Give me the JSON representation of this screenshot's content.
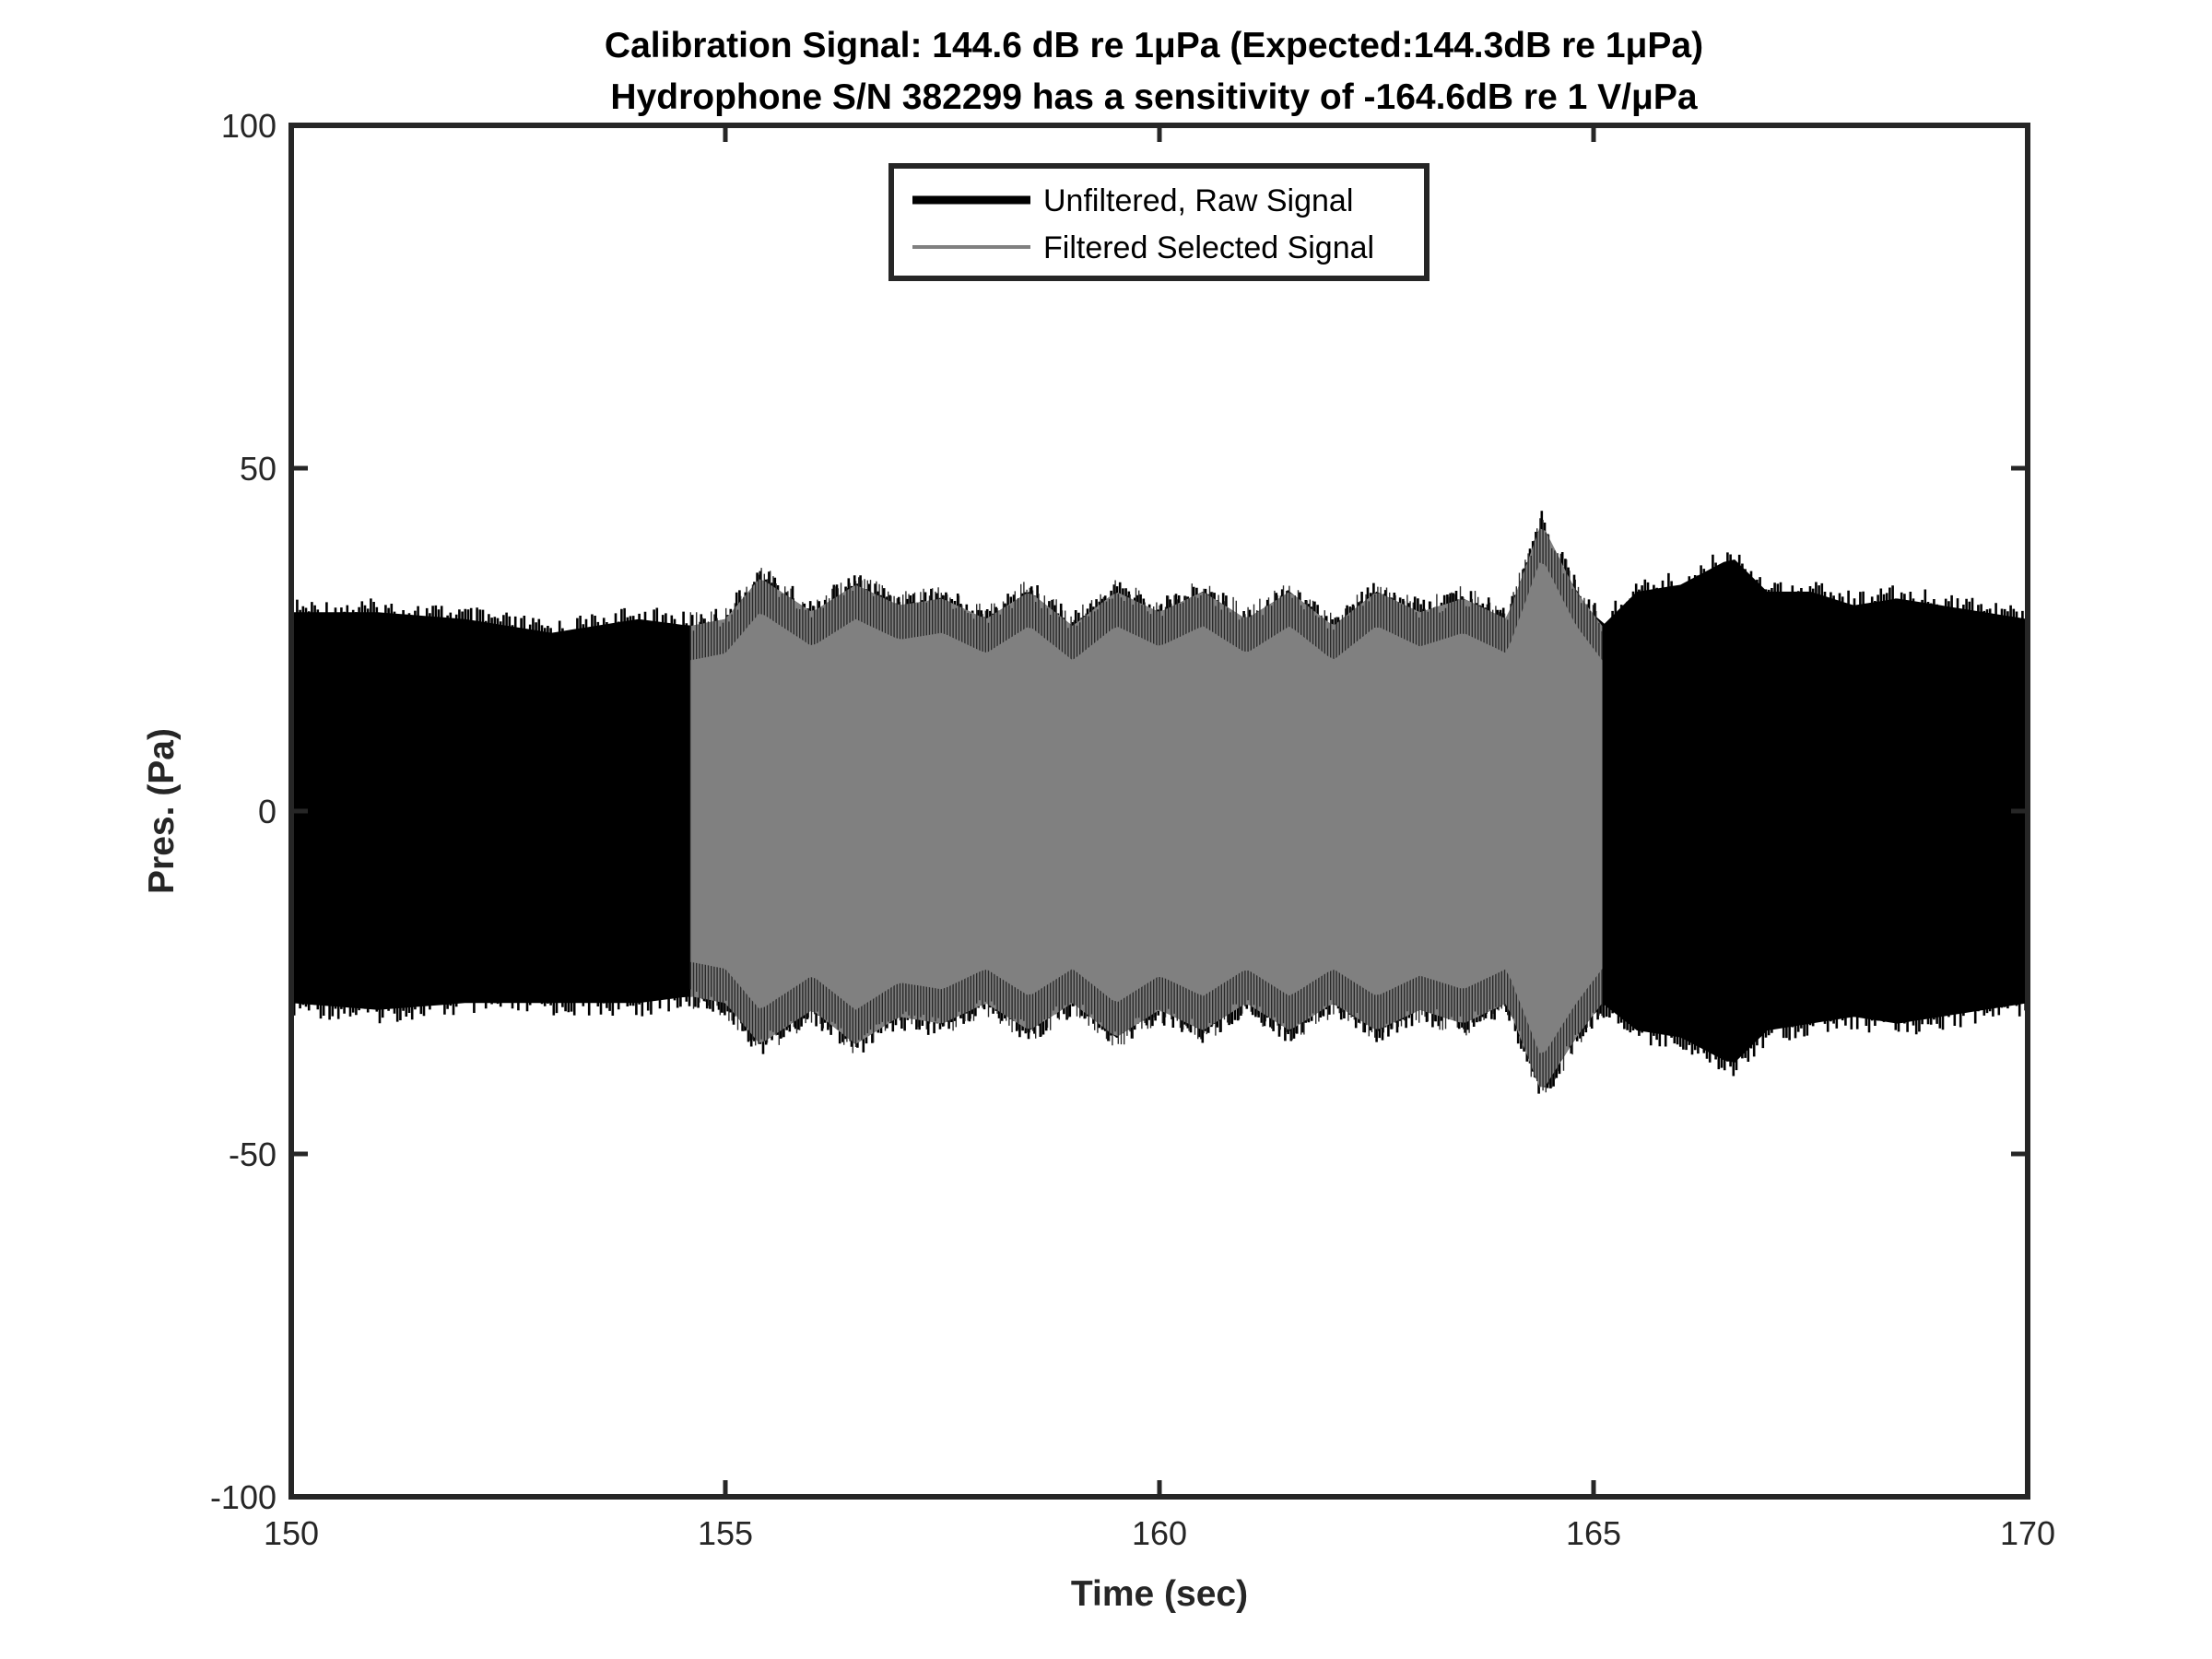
{
  "chart_data": {
    "type": "line",
    "title": "Calibration Signal: 144.6 dB re 1μPa (Expected:144.3dB re 1μPa)",
    "subtitle": "Hydrophone S/N 382299 has a sensitivity of -164.6dB re 1 V/μPa",
    "xlabel": "Time (sec)",
    "ylabel": "Pres. (Pa)",
    "xlim": [
      150,
      170
    ],
    "ylim": [
      -100,
      100
    ],
    "xticks": [
      150,
      155,
      160,
      165,
      170
    ],
    "xtick_labels": [
      "150",
      "155",
      "160",
      "165",
      "170"
    ],
    "yticks": [
      -100,
      -50,
      0,
      50,
      100
    ],
    "ytick_labels": [
      "-100",
      "-50",
      "0",
      "50",
      "100"
    ],
    "grid": false,
    "legend_position": "top-center",
    "series": [
      {
        "name": "Unfiltered, Raw Signal",
        "color": "#000000",
        "x_range": [
          150,
          170
        ],
        "envelope_upper": [
          [
            150,
            31
          ],
          [
            151,
            31
          ],
          [
            152,
            30
          ],
          [
            153,
            28
          ],
          [
            154,
            30
          ],
          [
            154.6,
            29
          ],
          [
            155,
            30
          ],
          [
            155.4,
            36
          ],
          [
            156,
            31
          ],
          [
            156.5,
            35
          ],
          [
            157,
            32
          ],
          [
            157.5,
            33
          ],
          [
            158,
            30
          ],
          [
            158.5,
            34
          ],
          [
            159,
            29
          ],
          [
            159.5,
            34
          ],
          [
            160,
            31
          ],
          [
            160.5,
            34
          ],
          [
            161,
            30
          ],
          [
            161.5,
            34
          ],
          [
            162,
            29
          ],
          [
            162.5,
            34
          ],
          [
            163,
            31
          ],
          [
            163.5,
            33
          ],
          [
            164,
            30
          ],
          [
            164.4,
            44
          ],
          [
            164.8,
            34
          ],
          [
            165.1,
            29
          ],
          [
            165.5,
            34
          ],
          [
            166,
            35
          ],
          [
            166.6,
            39
          ],
          [
            167,
            34
          ],
          [
            167.5,
            34
          ],
          [
            168,
            32
          ],
          [
            168.5,
            33
          ],
          [
            169,
            32
          ],
          [
            170,
            30
          ]
        ],
        "envelope_lower": [
          [
            150,
            -30
          ],
          [
            151,
            -31
          ],
          [
            152,
            -30
          ],
          [
            153,
            -30
          ],
          [
            154,
            -30
          ],
          [
            154.6,
            -29
          ],
          [
            155,
            -30
          ],
          [
            155.4,
            -36
          ],
          [
            156,
            -31
          ],
          [
            156.5,
            -36
          ],
          [
            157,
            -32
          ],
          [
            157.5,
            -33
          ],
          [
            158,
            -30
          ],
          [
            158.5,
            -34
          ],
          [
            159,
            -30
          ],
          [
            159.5,
            -35
          ],
          [
            160,
            -31
          ],
          [
            160.5,
            -34
          ],
          [
            161,
            -30
          ],
          [
            161.5,
            -34
          ],
          [
            162,
            -30
          ],
          [
            162.5,
            -34
          ],
          [
            163,
            -31
          ],
          [
            163.5,
            -33
          ],
          [
            164,
            -30
          ],
          [
            164.4,
            -43
          ],
          [
            164.8,
            -35
          ],
          [
            165.1,
            -30
          ],
          [
            165.5,
            -34
          ],
          [
            166,
            -35
          ],
          [
            166.6,
            -39
          ],
          [
            167,
            -34
          ],
          [
            167.5,
            -33
          ],
          [
            168,
            -32
          ],
          [
            168.5,
            -33
          ],
          [
            169,
            -32
          ],
          [
            170,
            -30
          ]
        ]
      },
      {
        "name": "Filtered Selected Signal",
        "color": "#808080",
        "x_range": [
          154.6,
          165.1
        ],
        "envelope_upper": [
          [
            154.6,
            29
          ],
          [
            155,
            30
          ],
          [
            155.4,
            36
          ],
          [
            156,
            31
          ],
          [
            156.5,
            35
          ],
          [
            157,
            32
          ],
          [
            157.5,
            33
          ],
          [
            158,
            30
          ],
          [
            158.5,
            34
          ],
          [
            159,
            29
          ],
          [
            159.5,
            34
          ],
          [
            160,
            31
          ],
          [
            160.5,
            34
          ],
          [
            161,
            30
          ],
          [
            161.5,
            34
          ],
          [
            162,
            29
          ],
          [
            162.5,
            34
          ],
          [
            163,
            31
          ],
          [
            163.5,
            33
          ],
          [
            164,
            30
          ],
          [
            164.4,
            44
          ],
          [
            164.8,
            34
          ],
          [
            165.1,
            29
          ]
        ],
        "envelope_lower": [
          [
            154.6,
            -29
          ],
          [
            155,
            -30
          ],
          [
            155.4,
            -36
          ],
          [
            156,
            -31
          ],
          [
            156.5,
            -36
          ],
          [
            157,
            -32
          ],
          [
            157.5,
            -33
          ],
          [
            158,
            -30
          ],
          [
            158.5,
            -34
          ],
          [
            159,
            -30
          ],
          [
            159.5,
            -35
          ],
          [
            160,
            -31
          ],
          [
            160.5,
            -34
          ],
          [
            161,
            -30
          ],
          [
            161.5,
            -34
          ],
          [
            162,
            -30
          ],
          [
            162.5,
            -34
          ],
          [
            163,
            -31
          ],
          [
            163.5,
            -33
          ],
          [
            164,
            -30
          ],
          [
            164.4,
            -43
          ],
          [
            164.8,
            -35
          ],
          [
            165.1,
            -30
          ]
        ]
      }
    ]
  }
}
